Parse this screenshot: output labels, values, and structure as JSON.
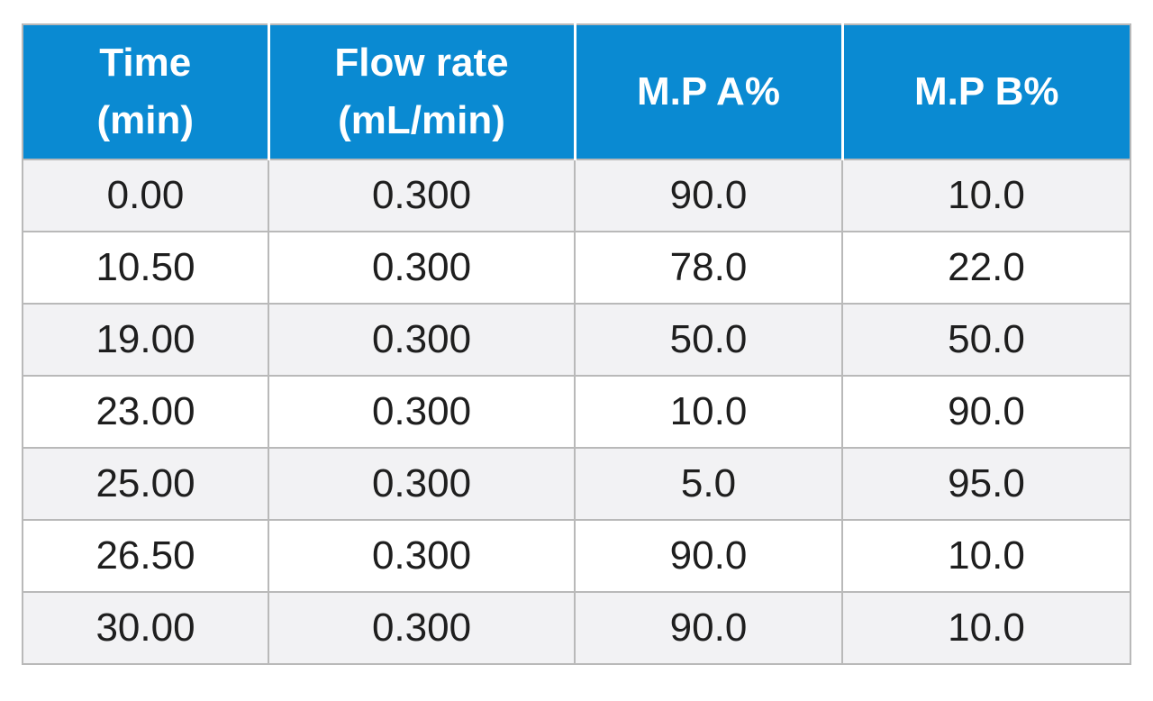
{
  "table": {
    "headers": [
      {
        "line1": "Time",
        "line2": "(min)"
      },
      {
        "line1": "Flow rate",
        "line2": "(mL/min)"
      },
      {
        "line1": "M.P A%",
        "line2": ""
      },
      {
        "line1": "M.P B%",
        "line2": ""
      }
    ],
    "rows": [
      [
        "0.00",
        "0.300",
        "90.0",
        "10.0"
      ],
      [
        "10.50",
        "0.300",
        "78.0",
        "22.0"
      ],
      [
        "19.00",
        "0.300",
        "50.0",
        "50.0"
      ],
      [
        "23.00",
        "0.300",
        "10.0",
        "90.0"
      ],
      [
        "25.00",
        "0.300",
        "5.0",
        "95.0"
      ],
      [
        "26.50",
        "0.300",
        "90.0",
        "10.0"
      ],
      [
        "30.00",
        "0.300",
        "90.0",
        "10.0"
      ]
    ],
    "colors": {
      "header_bg": "#0a8ad2",
      "header_text": "#ffffff",
      "row_alt_bg": "#f2f2f4",
      "row_bg": "#ffffff",
      "grid": "#b9b9b9"
    }
  }
}
